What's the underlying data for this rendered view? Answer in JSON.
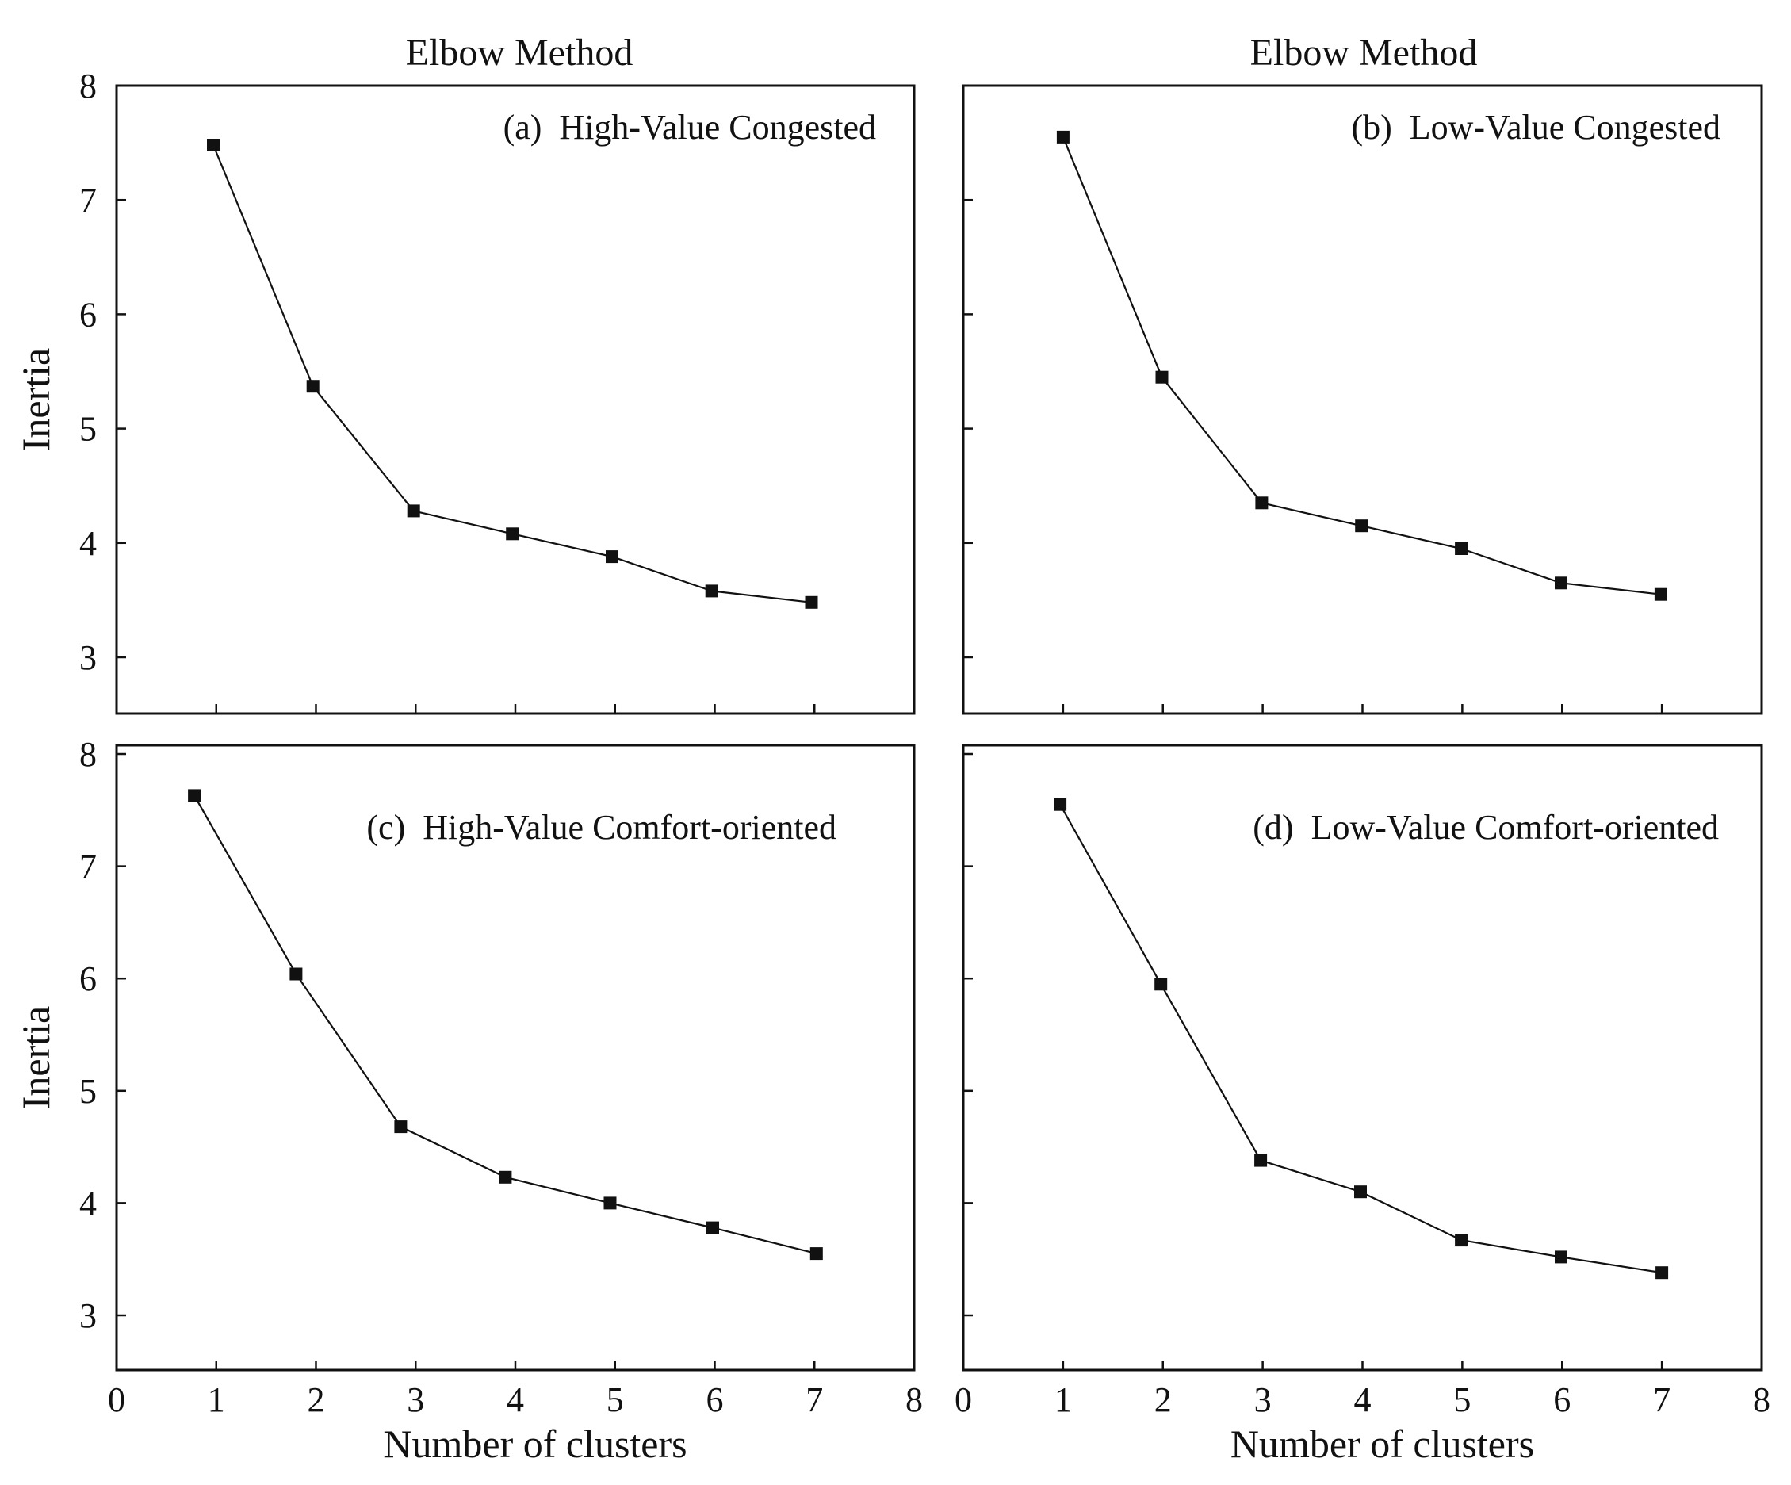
{
  "chart_data": [
    {
      "type": "line",
      "title": "Elbow Method",
      "label": "(a)  High-Value Congested",
      "xlabel": "",
      "ylabel": "Inertia",
      "xlim": [
        0,
        8
      ],
      "ylim": [
        2.5,
        8
      ],
      "x": [
        0.97,
        1.97,
        2.98,
        3.97,
        4.97,
        5.97,
        6.97
      ],
      "series": [
        {
          "values": [
            7.48,
            5.37,
            4.28,
            4.08,
            3.88,
            3.58,
            3.48
          ]
        }
      ],
      "xticks": [
        1,
        2,
        3,
        4,
        5,
        6,
        7
      ],
      "yticks": [
        3,
        4,
        5,
        6,
        7,
        8
      ],
      "ytick_labels": [
        "3",
        "4",
        "5",
        "6",
        "7",
        "8"
      ],
      "xtick_labels": [],
      "color": "#111111",
      "grid": false
    },
    {
      "type": "line",
      "title": "Elbow Method",
      "label": "(b)  Low-Value Congested",
      "xlabel": "",
      "ylabel": "",
      "xlim": [
        0,
        8
      ],
      "ylim": [
        2.5,
        8
      ],
      "x": [
        1.0,
        1.99,
        2.99,
        3.99,
        4.99,
        5.99,
        6.99
      ],
      "series": [
        {
          "values": [
            7.55,
            5.45,
            4.35,
            4.15,
            3.95,
            3.65,
            3.55
          ]
        }
      ],
      "xticks": [
        1,
        2,
        3,
        4,
        5,
        6,
        7
      ],
      "yticks": [
        3,
        4,
        5,
        6,
        7,
        8
      ],
      "ytick_labels": [],
      "xtick_labels": [],
      "color": "#111111",
      "grid": false
    },
    {
      "type": "line",
      "title": "",
      "label": "(c)  High-Value Comfort-oriented",
      "xlabel": "Number of clusters",
      "ylabel": "Inertia",
      "xlim": [
        0,
        8
      ],
      "ylim": [
        2.5,
        8
      ],
      "x": [
        0.78,
        1.8,
        2.85,
        3.9,
        4.95,
        5.98,
        7.02
      ],
      "series": [
        {
          "values": [
            7.63,
            6.04,
            4.68,
            4.23,
            4.0,
            3.78,
            3.55
          ]
        }
      ],
      "xticks": [
        0,
        1,
        2,
        3,
        4,
        5,
        6,
        7,
        8
      ],
      "yticks": [
        3,
        4,
        5,
        6,
        7,
        8
      ],
      "ytick_labels": [
        "3",
        "4",
        "5",
        "6",
        "7",
        "8"
      ],
      "xtick_labels": [
        "0",
        "1",
        "2",
        "3",
        "4",
        "5",
        "6",
        "7",
        "8"
      ],
      "color": "#333333",
      "grid": false
    },
    {
      "type": "line",
      "title": "",
      "label": "(d)  Low-Value Comfort-oriented",
      "xlabel": "Number of clusters",
      "ylabel": "",
      "xlim": [
        0,
        8
      ],
      "ylim": [
        2.5,
        8
      ],
      "x": [
        0.97,
        1.98,
        2.98,
        3.98,
        4.99,
        5.99,
        7.0
      ],
      "series": [
        {
          "values": [
            7.55,
            5.95,
            4.38,
            4.1,
            3.67,
            3.52,
            3.38
          ]
        }
      ],
      "xticks": [
        0,
        1,
        2,
        3,
        4,
        5,
        6,
        7,
        8
      ],
      "yticks": [
        3,
        4,
        5,
        6,
        7,
        8
      ],
      "ytick_labels": [],
      "xtick_labels": [
        "0",
        "1",
        "2",
        "3",
        "4",
        "5",
        "6",
        "7",
        "8"
      ],
      "color": "#333333",
      "grid": false
    }
  ]
}
